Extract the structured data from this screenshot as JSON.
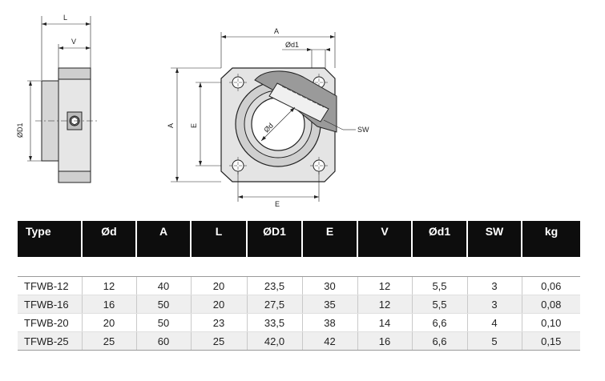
{
  "drawing": {
    "side_view": {
      "label_L": "L",
      "label_V": "V",
      "label_D1": "ØD1"
    },
    "front_view": {
      "label_A_top": "A",
      "label_d1": "Ød1",
      "label_A_left": "A",
      "label_E_left": "E",
      "label_d": "Ød",
      "label_SW": "SW",
      "label_E_bottom": "E"
    }
  },
  "table": {
    "headers": [
      "Type",
      "Ød",
      "A",
      "L",
      "ØD1",
      "E",
      "V",
      "Ød1",
      "SW",
      "kg"
    ],
    "rows": [
      [
        "TFWB-12",
        "12",
        "40",
        "20",
        "23,5",
        "30",
        "12",
        "5,5",
        "3",
        "0,06"
      ],
      [
        "TFWB-16",
        "16",
        "50",
        "20",
        "27,5",
        "35",
        "12",
        "5,5",
        "3",
        "0,08"
      ],
      [
        "TFWB-20",
        "20",
        "50",
        "23",
        "33,5",
        "38",
        "14",
        "6,6",
        "4",
        "0,10"
      ],
      [
        "TFWB-25",
        "25",
        "60",
        "25",
        "42,0",
        "42",
        "16",
        "6,6",
        "5",
        "0,15"
      ]
    ]
  }
}
